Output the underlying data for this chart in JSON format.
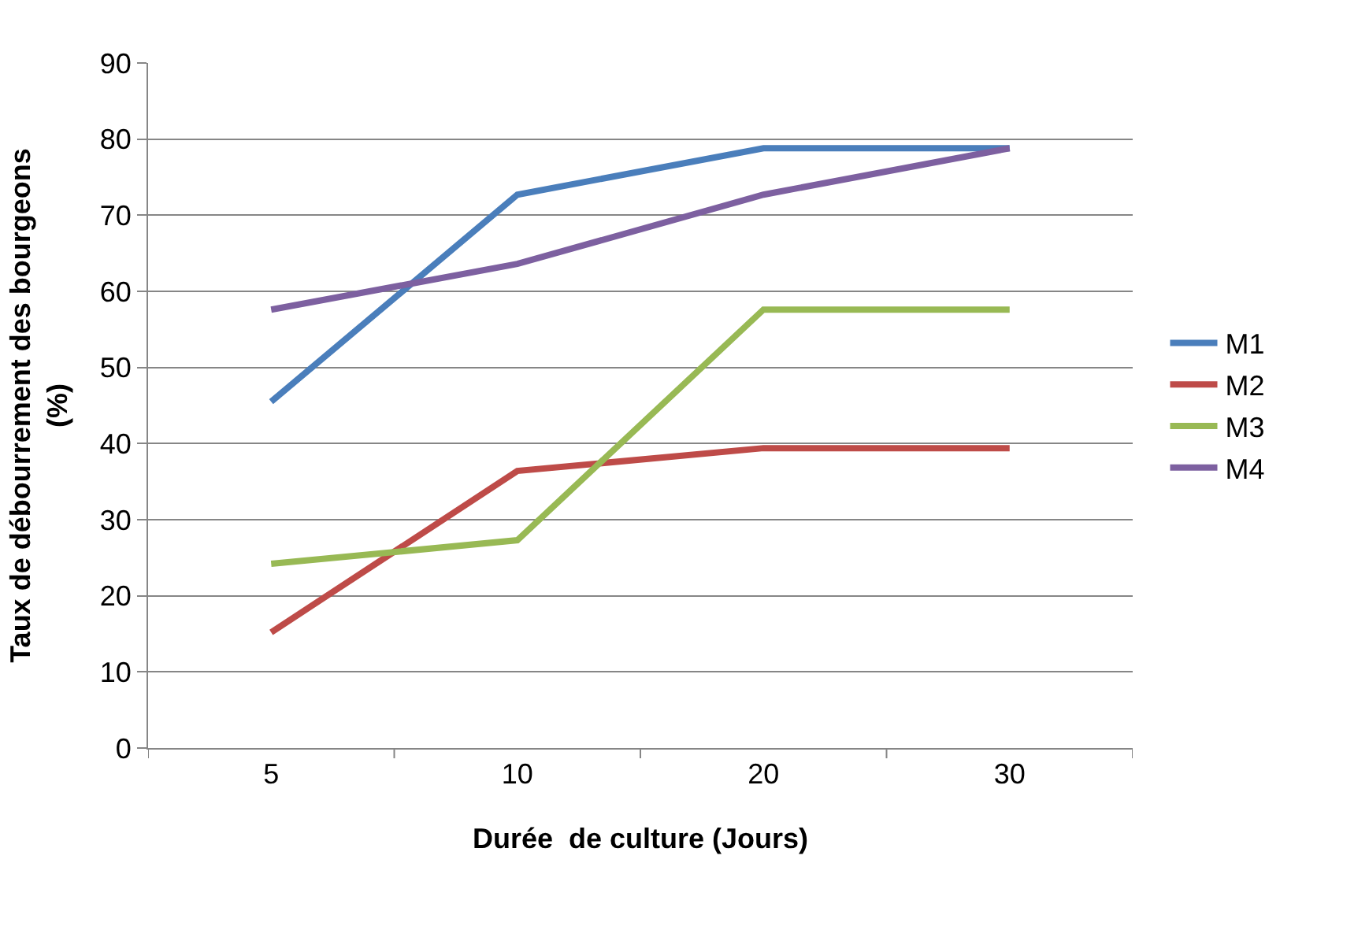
{
  "chart_data": {
    "type": "line",
    "xlabel": "Durée  de culture (Jours)",
    "ylabel": "Taux de débourrement des bourgeons\n(%)",
    "categories": [
      "5",
      "10",
      "20",
      "30"
    ],
    "series": [
      {
        "name": "M1",
        "color": "#4a7ebb",
        "values": [
          45.5,
          72.7,
          78.8,
          78.8
        ]
      },
      {
        "name": "M2",
        "color": "#be4b48",
        "values": [
          15.2,
          36.4,
          39.4,
          39.4
        ]
      },
      {
        "name": "M3",
        "color": "#98b954",
        "values": [
          24.2,
          27.3,
          57.6,
          57.6
        ]
      },
      {
        "name": "M4",
        "color": "#7d60a0",
        "values": [
          57.6,
          63.6,
          72.7,
          78.8
        ]
      }
    ],
    "ylim": [
      0,
      90
    ],
    "yticks": [
      0,
      10,
      20,
      30,
      40,
      50,
      60,
      70,
      80,
      90
    ],
    "grid": "y",
    "legend": "right",
    "marker": "none"
  }
}
